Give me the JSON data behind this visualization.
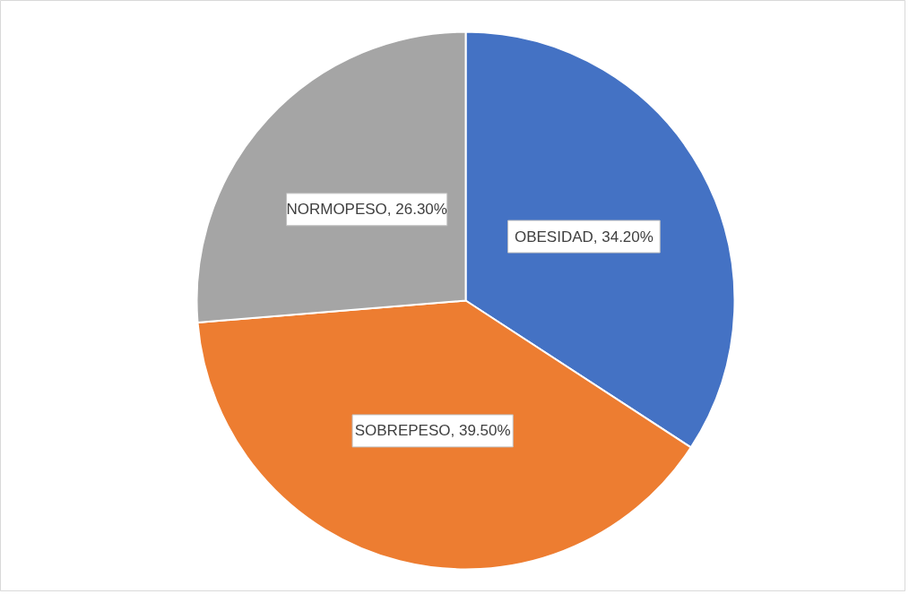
{
  "chart_data": {
    "type": "pie",
    "categories": [
      "OBESIDAD",
      "SOBREPESO",
      "NORMOPESO"
    ],
    "values": [
      34.2,
      39.5,
      26.3
    ],
    "colors": [
      "#4472c4",
      "#ed7d31",
      "#a5a5a5"
    ],
    "value_labels": [
      "34.20%",
      "39.50%",
      "26.30%"
    ]
  }
}
